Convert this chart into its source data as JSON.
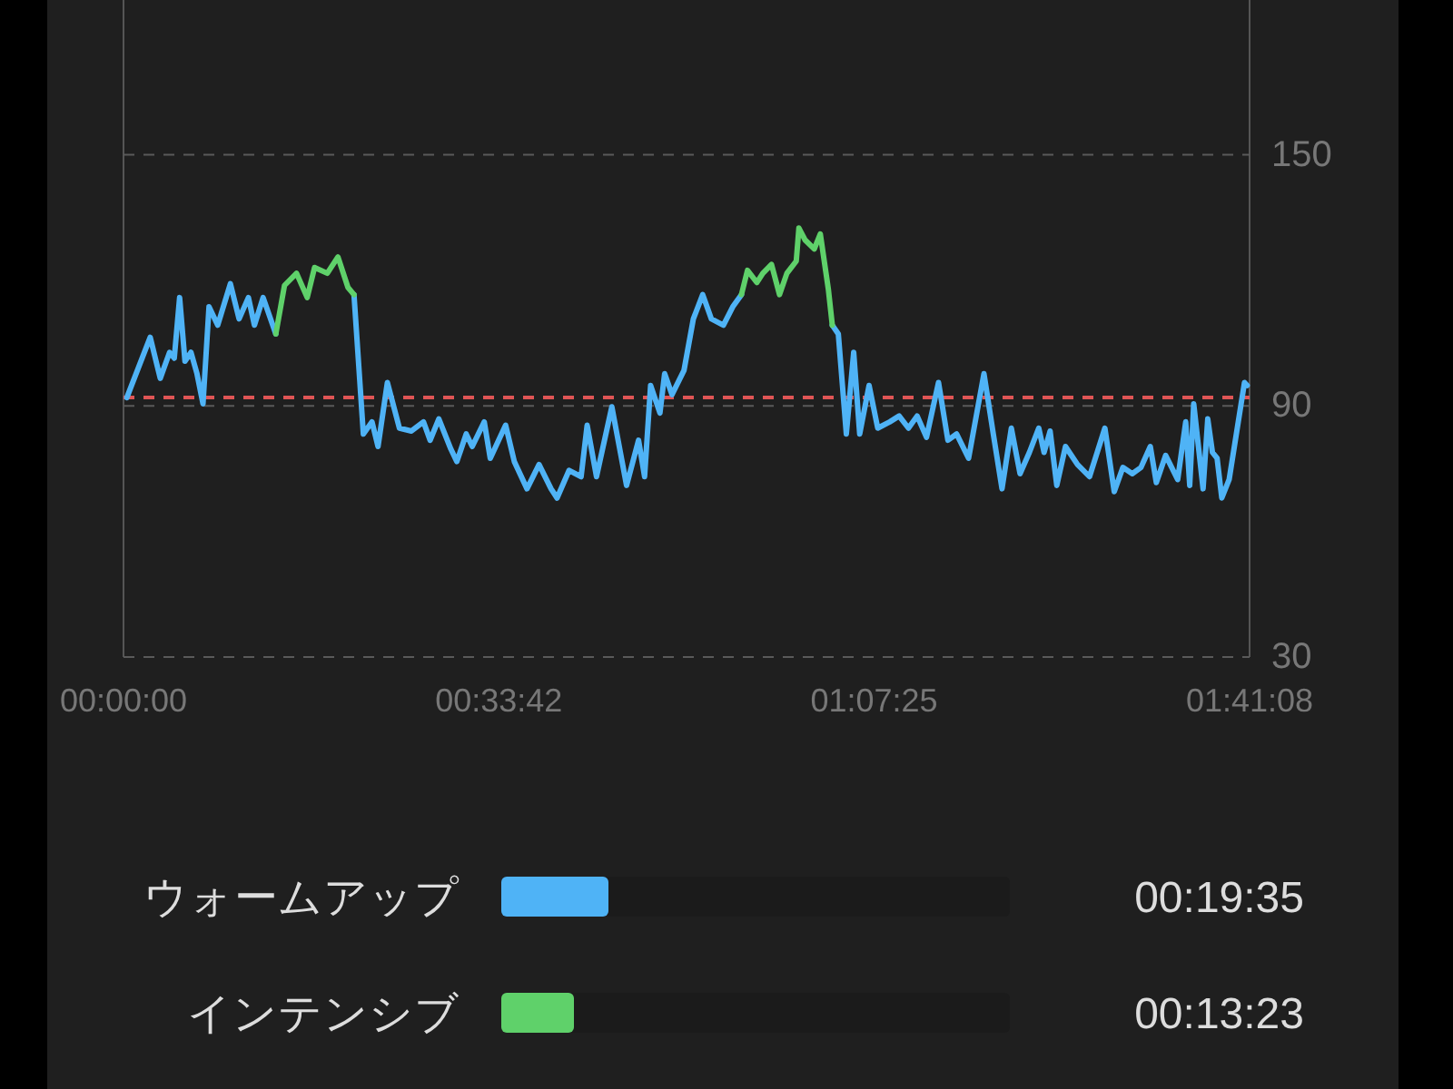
{
  "chart_data": {
    "type": "line",
    "xlim": [
      0,
      1.6856
    ],
    "xticks": [
      {
        "value": 0,
        "label": "00:00:00"
      },
      {
        "value": 0.5617,
        "label": "00:33:42"
      },
      {
        "value": 1.1236,
        "label": "01:07:25"
      },
      {
        "value": 1.6856,
        "label": "01:41:08"
      }
    ],
    "ylim": [
      30,
      187
    ],
    "yticks": [
      30,
      90,
      150
    ],
    "grid": "y",
    "legend": "bottom",
    "marker": "none",
    "line_style": "solid",
    "ref_lines": [
      {
        "axis": "y",
        "value": 92,
        "color": "#e05555",
        "line_style": "dashed"
      }
    ],
    "series": [
      {
        "name": "ウォームアップ",
        "color": "#4fb3f6",
        "x": [
          0.005,
          0.04,
          0.055,
          0.069,
          0.076,
          0.084,
          0.092,
          0.101,
          0.11,
          0.119,
          0.128,
          0.141,
          0.16,
          0.173,
          0.187,
          0.196,
          0.209,
          0.228,
          null,
          0.345,
          0.359,
          0.372,
          0.381,
          0.395,
          0.413,
          0.431,
          0.449,
          0.459,
          0.472,
          0.49,
          0.499,
          0.513,
          0.522,
          0.54,
          0.549,
          0.572,
          0.585,
          0.604,
          0.622,
          0.64,
          0.649,
          0.667,
          0.685,
          0.694,
          0.708,
          0.731,
          0.753,
          0.771,
          0.78,
          0.789,
          0.803,
          0.81,
          0.821,
          0.839,
          0.853,
          0.867,
          0.88,
          0.898,
          0.912,
          0.925,
          null,
          1.061,
          1.07,
          1.082,
          1.093,
          1.102,
          1.116,
          1.129,
          1.147,
          1.161,
          1.175,
          1.188,
          1.202,
          1.22,
          1.234,
          1.247,
          1.265,
          1.288,
          1.302,
          1.315,
          1.329,
          1.342,
          1.356,
          1.37,
          1.378,
          1.387,
          1.397,
          1.41,
          1.428,
          1.446,
          1.469,
          1.483,
          1.496,
          1.51,
          1.523,
          1.537,
          1.546,
          1.56,
          1.578,
          1.59,
          1.596,
          1.602,
          1.616,
          1.623,
          1.63,
          1.637,
          1.644,
          1.655,
          1.678,
          1.682
        ],
        "values": [
          92,
          106.4,
          96.6,
          102.8,
          101.4,
          115.9,
          100.7,
          102.8,
          97.7,
          90.5,
          113.7,
          109.3,
          119.2,
          110.8,
          115.9,
          109.3,
          115.9,
          107.2,
          null,
          116.6,
          83.3,
          86.2,
          80.3,
          95.6,
          84.7,
          84,
          86.2,
          81.8,
          86.9,
          79.7,
          76.7,
          83.3,
          80.3,
          86.2,
          77.5,
          85.4,
          76.7,
          70.2,
          76,
          70.2,
          68,
          74.6,
          73.1,
          85.4,
          73.1,
          89.8,
          71,
          81.8,
          73.1,
          94.9,
          88.3,
          97.7,
          92.7,
          98.5,
          110.8,
          116.6,
          110.8,
          109.3,
          113.7,
          116.6,
          null,
          109.3,
          107.2,
          83.3,
          102.8,
          83.3,
          94.9,
          84.7,
          86.2,
          87.6,
          84.7,
          87.6,
          82.5,
          95.6,
          81.8,
          83.3,
          77.5,
          97.7,
          83.3,
          70.2,
          84.7,
          73.8,
          78.9,
          84.7,
          78.9,
          84,
          71,
          80.3,
          76,
          73.1,
          84.7,
          69.5,
          75.3,
          73.8,
          75.3,
          80.3,
          71.7,
          78.2,
          72.4,
          86.2,
          71,
          90.5,
          70.2,
          86.9,
          78.9,
          77.5,
          68,
          72.4,
          95.6,
          94.9
        ]
      },
      {
        "name": "インテンシブ",
        "color": "#5fd16a",
        "x": [
          0.228,
          0.241,
          0.259,
          0.275,
          0.286,
          0.305,
          0.321,
          0.336,
          0.345,
          null,
          0.925,
          0.934,
          0.948,
          0.957,
          0.97,
          0.982,
          0.993,
          1.007,
          1.011,
          1.02,
          1.034,
          1.043,
          1.055,
          1.061
        ],
        "values": [
          107.2,
          118.8,
          121.7,
          115.9,
          123.1,
          121.7,
          125.6,
          118.3,
          116.6,
          null,
          116.6,
          122.4,
          119.5,
          121.7,
          123.8,
          116.6,
          121.7,
          124.6,
          132.5,
          129.7,
          127.5,
          131.1,
          118,
          109.3
        ]
      }
    ],
    "annotations": [
      "00:19:35",
      "00:13:23"
    ]
  }
}
